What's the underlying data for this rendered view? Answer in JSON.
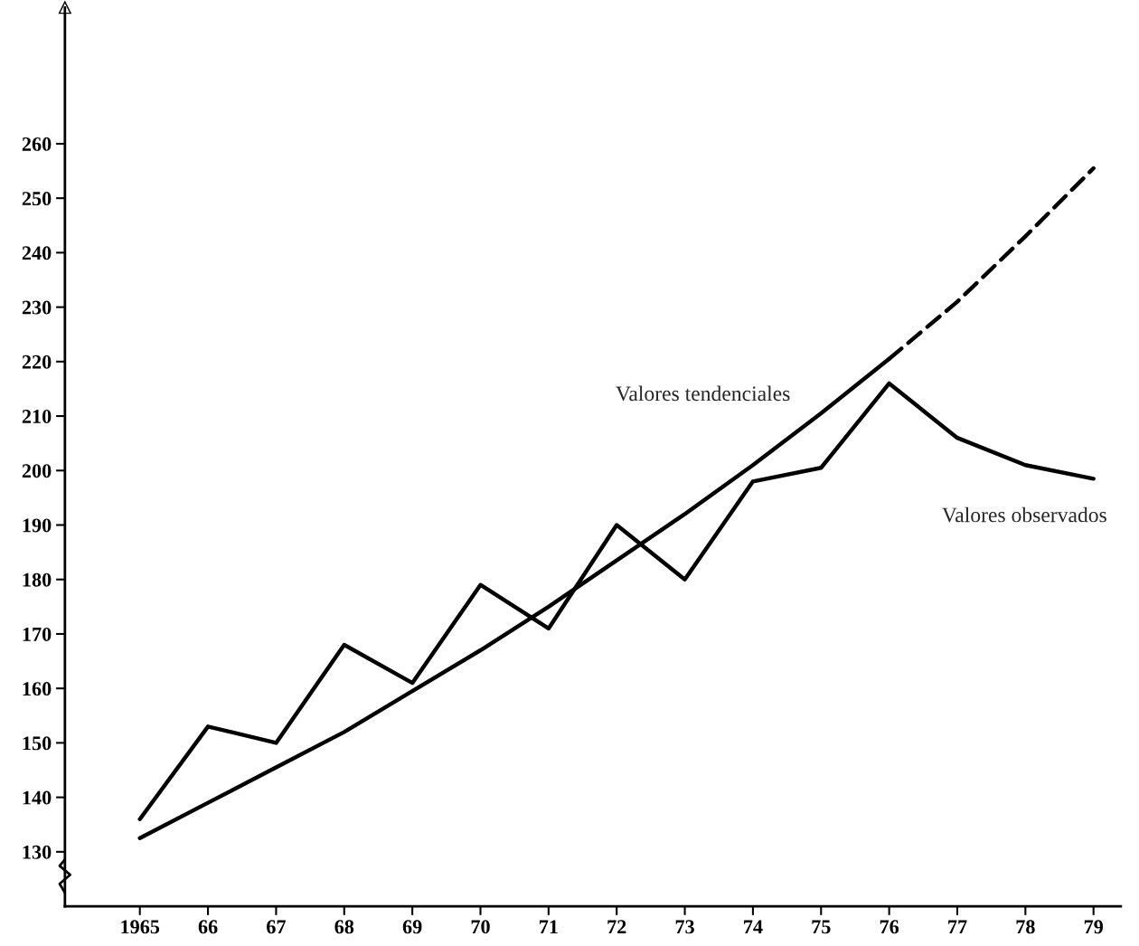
{
  "chart_data": {
    "type": "line",
    "x": [
      1965,
      1966,
      1967,
      1968,
      1969,
      1970,
      1971,
      1972,
      1973,
      1974,
      1975,
      1976,
      1977,
      1978,
      1979
    ],
    "series": [
      {
        "name": "Valores tendenciales",
        "color": "#000000",
        "line_style": "solid",
        "x": [
          1965,
          1966,
          1967,
          1968,
          1969,
          1970,
          1971,
          1972,
          1973,
          1974,
          1975,
          1976
        ],
        "values": [
          132.5,
          139,
          145.5,
          152,
          159.5,
          167,
          175,
          183.5,
          192,
          201,
          210.5,
          220.5
        ]
      },
      {
        "color": "#000000",
        "line_style": "dashed",
        "x": [
          1976,
          1977,
          1978,
          1979
        ],
        "values": [
          220.5,
          231,
          243,
          255.5
        ]
      },
      {
        "name": "Valores observados",
        "color": "#000000",
        "line_style": "solid",
        "values": [
          136,
          153,
          150,
          168,
          161,
          179,
          171,
          190,
          180,
          198,
          200.5,
          216,
          206,
          201,
          198.5
        ]
      }
    ],
    "xlim": [
      1963.9,
      1979.4
    ],
    "ylim": [
      120,
      285
    ],
    "xticks": [
      {
        "value": 1965,
        "label": "1965"
      },
      {
        "value": 1966,
        "label": "66"
      },
      {
        "value": 1967,
        "label": "67"
      },
      {
        "value": 1968,
        "label": "68"
      },
      {
        "value": 1969,
        "label": "69"
      },
      {
        "value": 1970,
        "label": "70"
      },
      {
        "value": 1971,
        "label": "71"
      },
      {
        "value": 1972,
        "label": "72"
      },
      {
        "value": 1973,
        "label": "73"
      },
      {
        "value": 1974,
        "label": "74"
      },
      {
        "value": 1975,
        "label": "75"
      },
      {
        "value": 1976,
        "label": "76"
      },
      {
        "value": 1977,
        "label": "77"
      },
      {
        "value": 1978,
        "label": "78"
      },
      {
        "value": 1979,
        "label": "79"
      }
    ],
    "yticks": [
      130,
      140,
      150,
      160,
      170,
      180,
      190,
      200,
      210,
      220,
      230,
      240,
      250,
      260
    ],
    "grid": false,
    "marker": "none"
  }
}
